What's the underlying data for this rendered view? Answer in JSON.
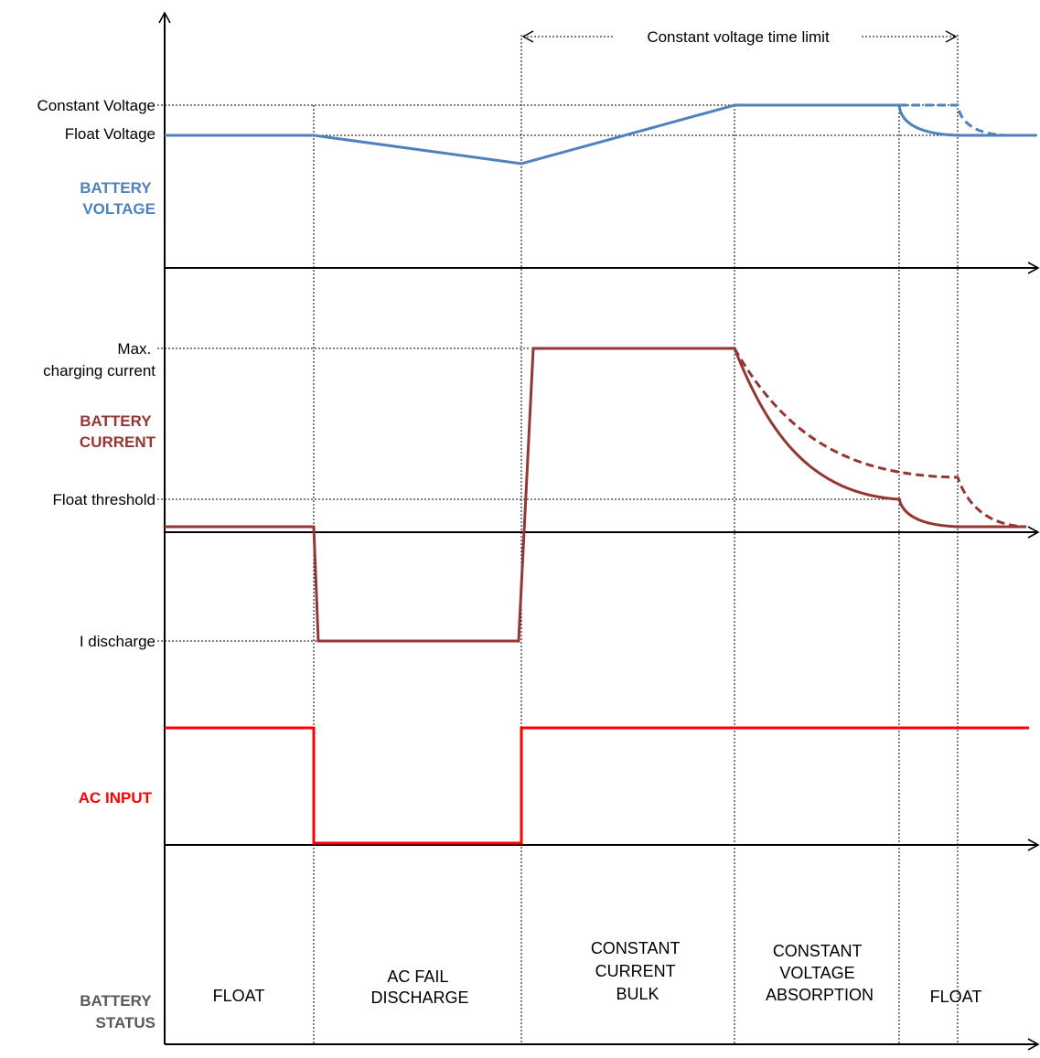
{
  "colors": {
    "voltage": "#4F81BD",
    "current": "#943634",
    "ac": "#FF0000",
    "status": "#595959",
    "axis": "#000000"
  },
  "time_limit_label": "Constant voltage time limit",
  "voltage_panel": {
    "caption": [
      "BATTERY",
      "VOLTAGE"
    ],
    "levels": {
      "constant_voltage": "Constant Voltage",
      "float_voltage": "Float Voltage"
    }
  },
  "current_panel": {
    "caption": [
      "BATTERY",
      "CURRENT"
    ],
    "levels": {
      "max_charging": [
        "Max.",
        "charging current"
      ],
      "float_threshold": "Float threshold",
      "discharge": "I discharge"
    }
  },
  "ac_panel": {
    "caption": "AC INPUT"
  },
  "status_panel": {
    "caption": [
      "BATTERY",
      "STATUS"
    ],
    "phases": [
      [
        "FLOAT"
      ],
      [
        "AC FAIL",
        "DISCHARGE"
      ],
      [
        "CONSTANT",
        "CURRENT",
        "BULK"
      ],
      [
        "CONSTANT",
        "VOLTAGE",
        "ABSORPTION"
      ],
      [
        "FLOAT"
      ]
    ]
  }
}
